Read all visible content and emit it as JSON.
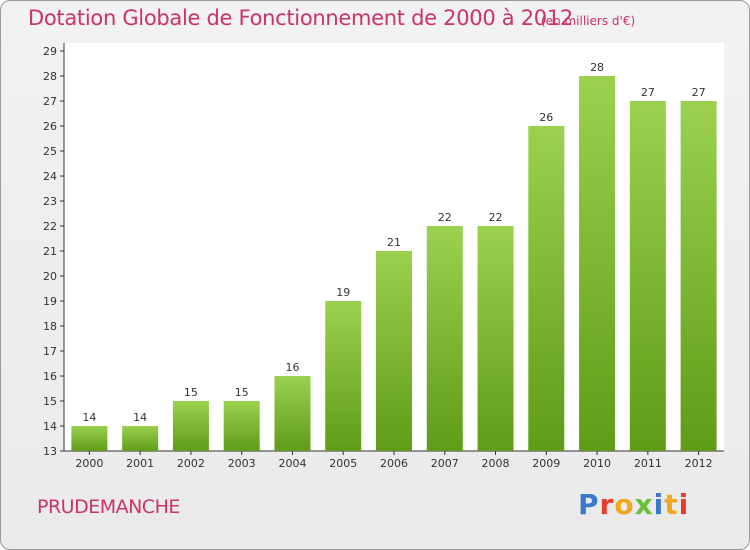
{
  "header": {
    "title": "Dotation Globale de Fonctionnement de 2000 à 2012",
    "unit": "(en milliers d'€)"
  },
  "footer": {
    "commune": "PRUDEMANCHE",
    "brand": "Proxiti",
    "brand_colors": [
      "#3a78c9",
      "#e63c2a",
      "#f0a820",
      "#6abf3a",
      "#3a78c9",
      "#f0a820",
      "#e63c2a"
    ]
  },
  "colors": {
    "bar_top": "#9bd14f",
    "bar_bottom": "#5f9c17",
    "text": "#cc3366",
    "axis": "#333333"
  },
  "chart_data": {
    "type": "bar",
    "categories": [
      "2000",
      "2001",
      "2002",
      "2003",
      "2004",
      "2005",
      "2006",
      "2007",
      "2008",
      "2009",
      "2010",
      "2011",
      "2012"
    ],
    "values": [
      14,
      14,
      15,
      15,
      16,
      19,
      21,
      22,
      22,
      26,
      28,
      27,
      27
    ],
    "data_labels": [
      "14",
      "14",
      "15",
      "15",
      "16",
      "19",
      "21",
      "22",
      "22",
      "26",
      "28",
      "27",
      "27"
    ],
    "ylim": [
      13,
      29
    ],
    "yticks": [
      13,
      14,
      15,
      16,
      17,
      18,
      19,
      20,
      21,
      22,
      23,
      24,
      25,
      26,
      27,
      28,
      29
    ],
    "grid": false,
    "legend": "none"
  }
}
